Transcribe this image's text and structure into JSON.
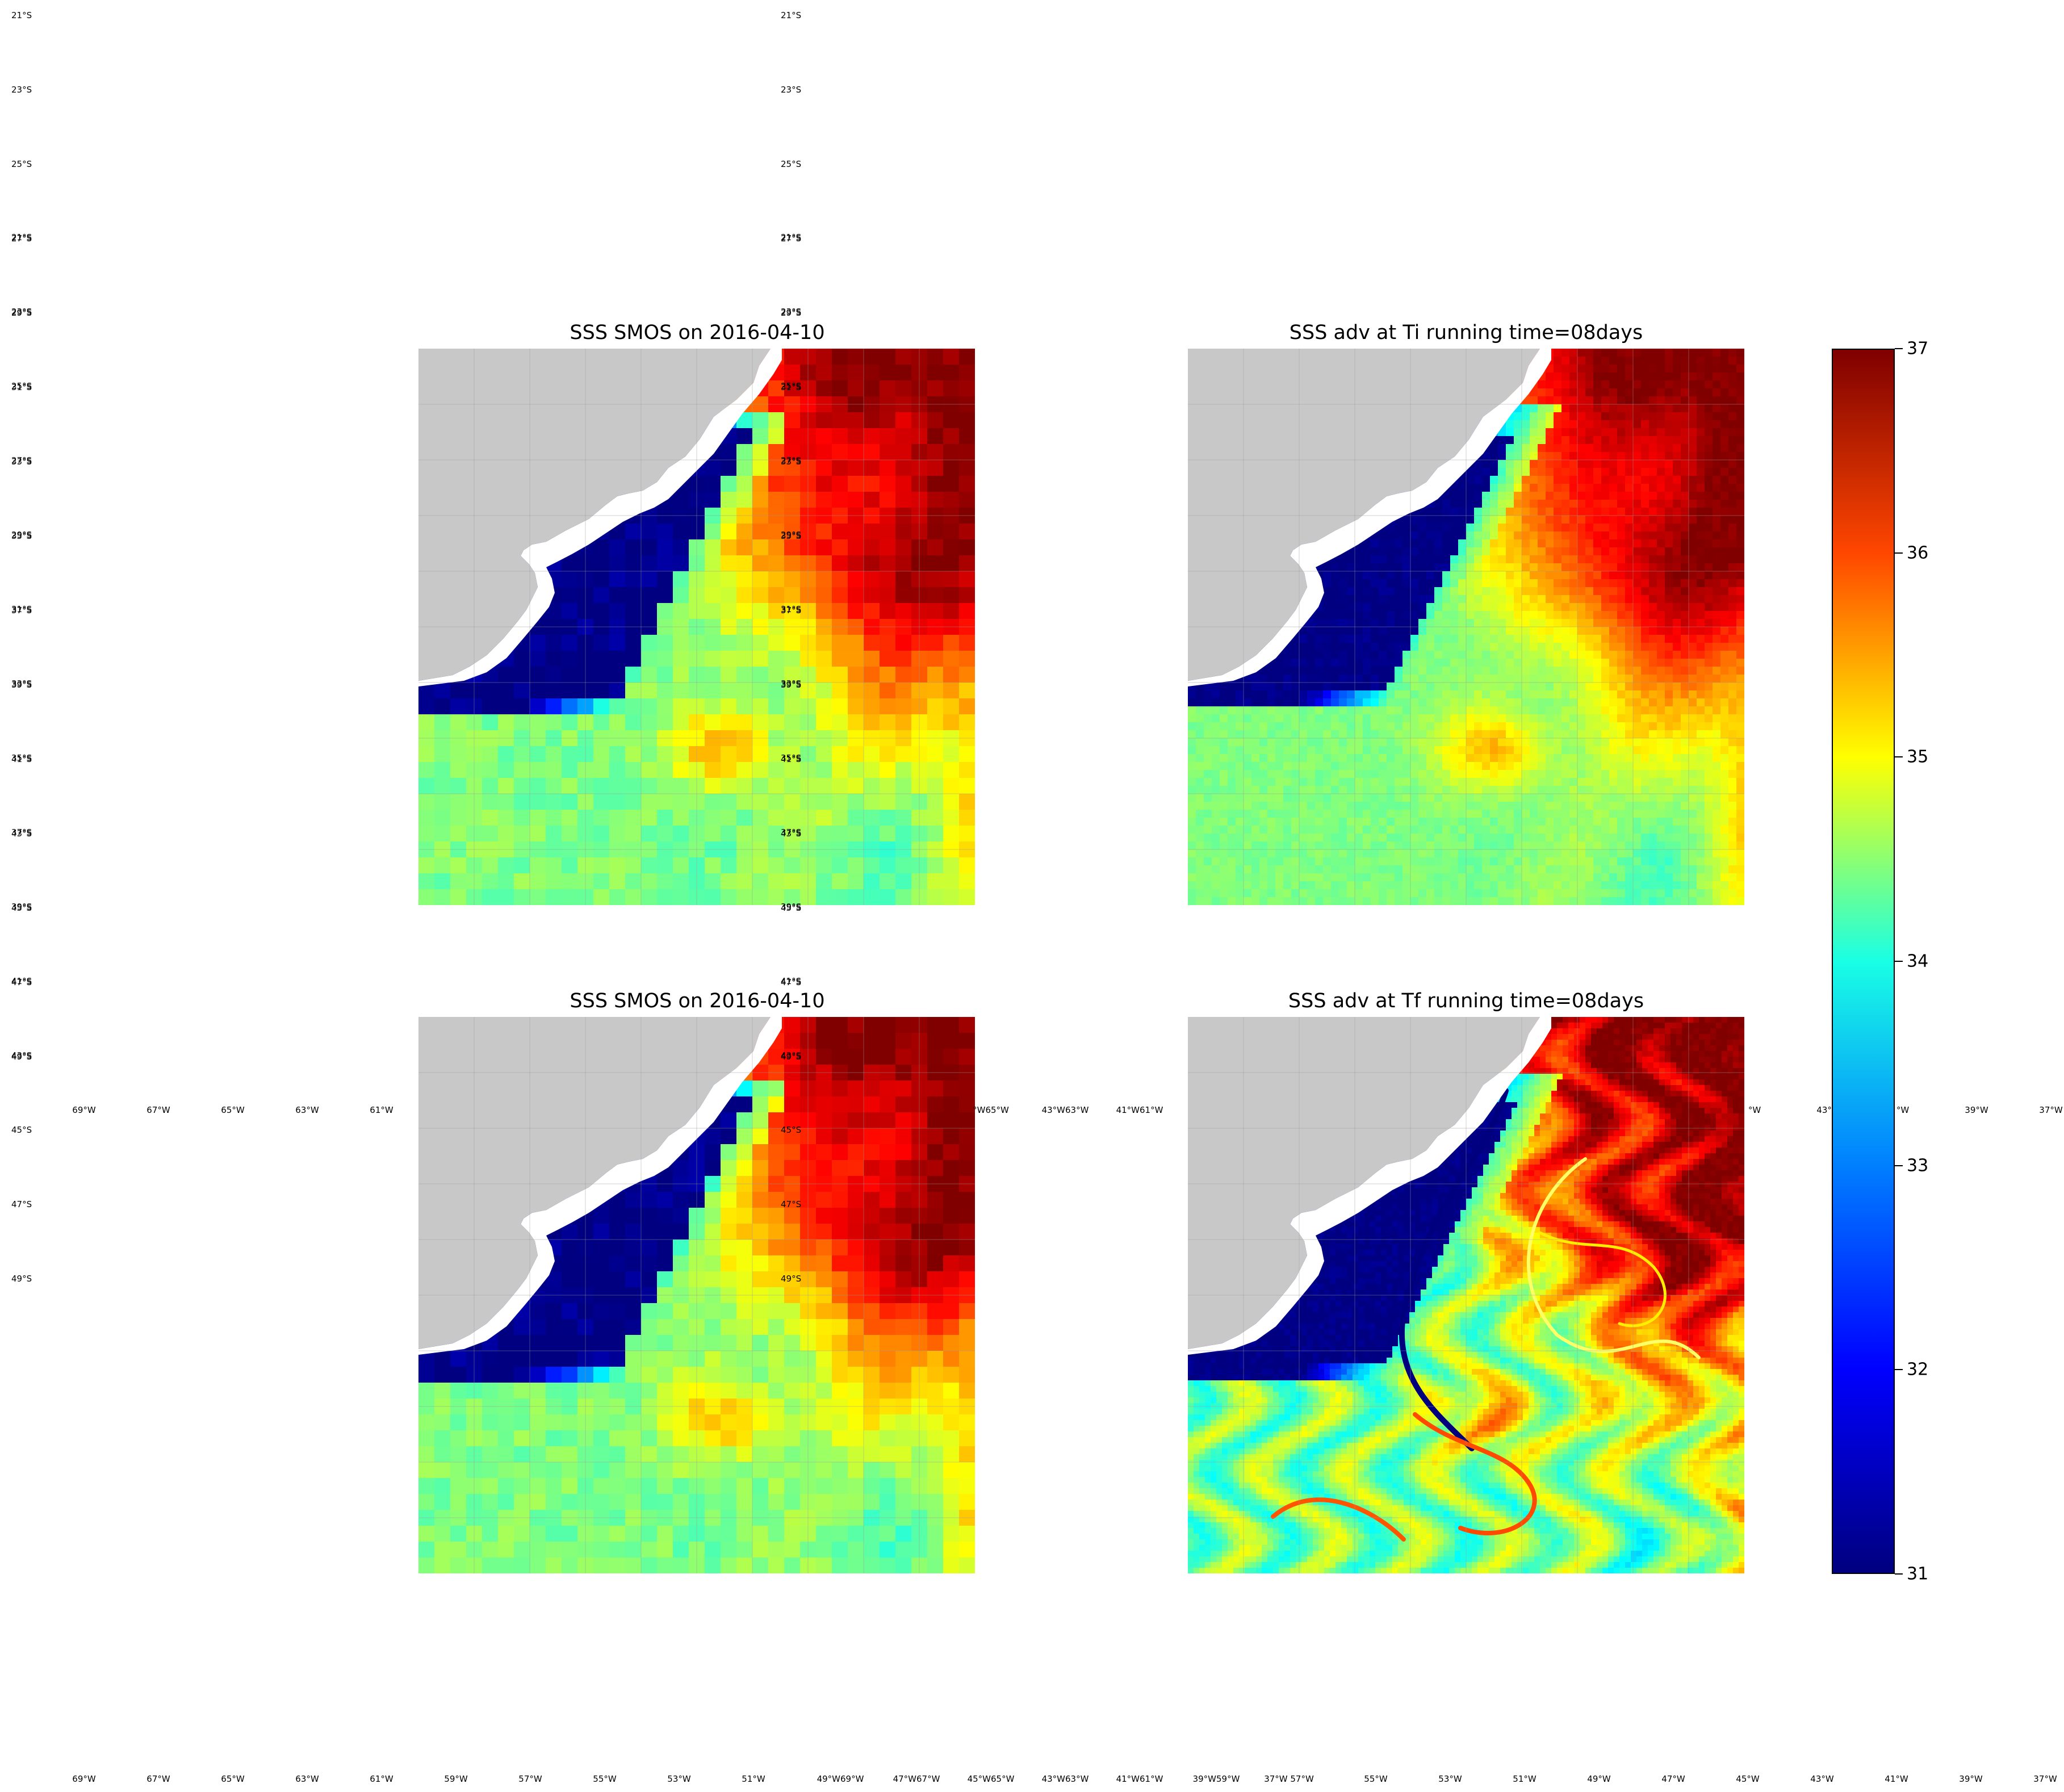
{
  "figure": {
    "colorbar": {
      "ticks": [
        "31",
        "32",
        "33",
        "34",
        "35",
        "36",
        "37"
      ],
      "colormap": "jet",
      "range": [
        31,
        37
      ],
      "colors": [
        "#00007f",
        "#0000ff",
        "#007fff",
        "#19ffe5",
        "#ffff00",
        "#ff4700",
        "#7f0000"
      ]
    },
    "left_axis": {
      "lat_labels": [
        "21°S",
        "23°S",
        "25°S",
        "27°S",
        "29°S",
        "31°S",
        "33°S",
        "35°S",
        "37°S",
        "39°S",
        "41°S",
        "43°S",
        "45°S",
        "47°S",
        "49°S"
      ],
      "lon_labels": [
        "69°W",
        "67°W",
        "65°W",
        "63°W",
        "61°W"
      ]
    },
    "center_axis": {
      "lat_labels": [
        "21°S",
        "23°S",
        "25°S",
        "27°S",
        "29°S",
        "31°S",
        "33°S",
        "35°S",
        "37°S",
        "39°S",
        "41°S",
        "43°S",
        "45°S",
        "47°S",
        "49°S"
      ]
    },
    "bottom_lon_labels": [
      "69°W",
      "67°W",
      "65°W",
      "63°W",
      "61°W",
      "59°W",
      "57°W",
      "55°W",
      "53°W",
      "51°W",
      "49°W69°W",
      "47°W67°W",
      "45°W65°W",
      "43°W63°W",
      "41°W61°W",
      "39°W59°W",
      "37°W 57°W",
      "55°W",
      "53°W",
      "51°W",
      "49°W",
      "47°W",
      "45°W",
      "43°W",
      "41°W",
      "39°W",
      "37°W"
    ],
    "middle_lon_labels": [
      "69°W",
      "67°W",
      "65°W",
      "63°W",
      "61°W",
      "°W65°W",
      "43°W63°W",
      "41°W61°W",
      "°W",
      "43°W",
      "°W",
      "39°W",
      "37°W"
    ],
    "panels": [
      {
        "id": "top-left",
        "title": "SSS SMOS on 2016-04-10",
        "style": "coarse"
      },
      {
        "id": "top-right",
        "title": "SSS adv at Ti running time=08days",
        "style": "smooth"
      },
      {
        "id": "bottom-left",
        "title": "SSS SMOS on 2016-04-10",
        "style": "coarse"
      },
      {
        "id": "bottom-right",
        "title": "SSS adv at Tf running time=08days",
        "style": "filament"
      }
    ]
  }
}
